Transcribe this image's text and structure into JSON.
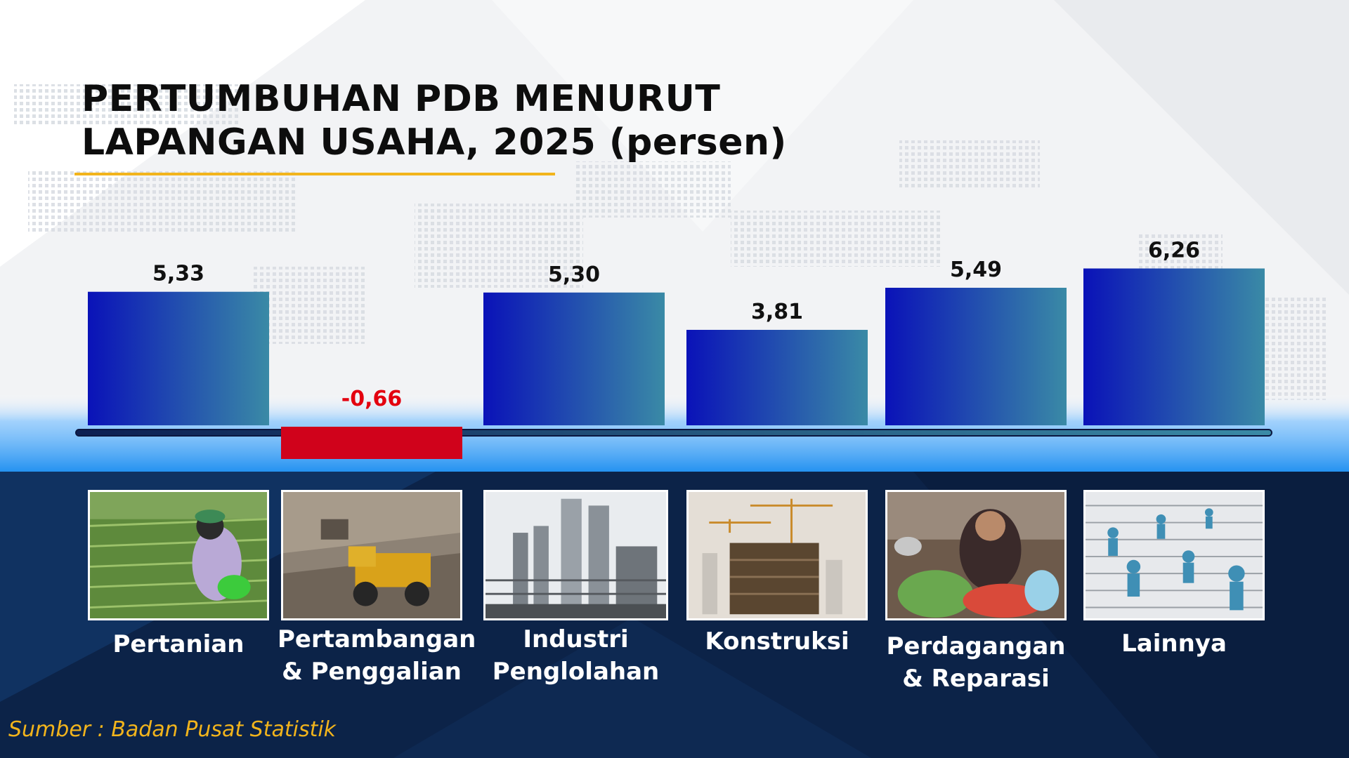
{
  "title_lines": [
    "PERTUMBUHAN PDB MENURUT",
    "LAPANGAN USAHA, 2025 (persen)"
  ],
  "source": "Sumber : Badan Pusat Statistik",
  "colors": {
    "bar_start": "#0a12b8",
    "bar_end": "#3a8aa6",
    "negative_bar": "#d0021b",
    "negative_label": "#e3000f",
    "title_rule": "#f2b41c",
    "bottom_panel": "#0c2348",
    "baseline": "#0d1f52"
  },
  "chart_data": {
    "type": "bar",
    "categories": [
      "Pertanian",
      "Pertambangan\n& Penggalian",
      "Industri\nPenglolahan",
      "Konstruksi",
      "Perdagangan\n& Reparasi",
      "Lainnya"
    ],
    "values": [
      5.33,
      -0.66,
      5.3,
      3.81,
      5.49,
      6.26
    ],
    "value_labels": [
      "5,33",
      "-0,66",
      "5,30",
      "3,81",
      "5,49",
      "6,26"
    ],
    "title": "PERTUMBUHAN PDB MENURUT LAPANGAN USAHA, 2025 (persen)",
    "xlabel": "",
    "ylabel": "",
    "grid": false,
    "legend": "none"
  },
  "images": [
    {
      "icon": "farmer-field-photo-icon"
    },
    {
      "icon": "mining-truck-photo-icon"
    },
    {
      "icon": "industrial-plant-photo-icon"
    },
    {
      "icon": "construction-crane-photo-icon"
    },
    {
      "icon": "market-vendor-photo-icon"
    },
    {
      "icon": "classified-ads-people-photo-icon"
    }
  ]
}
